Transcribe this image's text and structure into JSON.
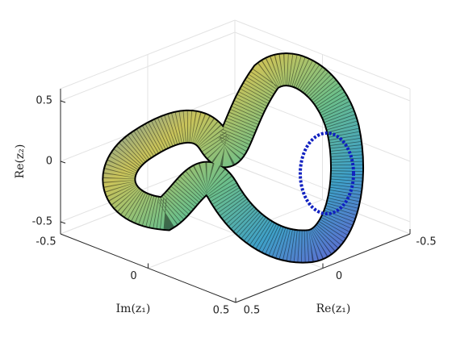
{
  "chart_data": {
    "type": "surface3d",
    "xlabel": "Im(z₁)",
    "ylabel": "Re(z₁)",
    "zlabel": "Re(z₂)",
    "xlim": [
      -0.5,
      0.5
    ],
    "ylim": [
      -0.5,
      0.5
    ],
    "zlim": [
      -0.6,
      0.6
    ],
    "xticks": [
      -0.5,
      0,
      0.5
    ],
    "yticks": [
      -0.5,
      0,
      0.5
    ],
    "zticks": [
      -0.5,
      0,
      0.5
    ],
    "grid": true
  }
}
